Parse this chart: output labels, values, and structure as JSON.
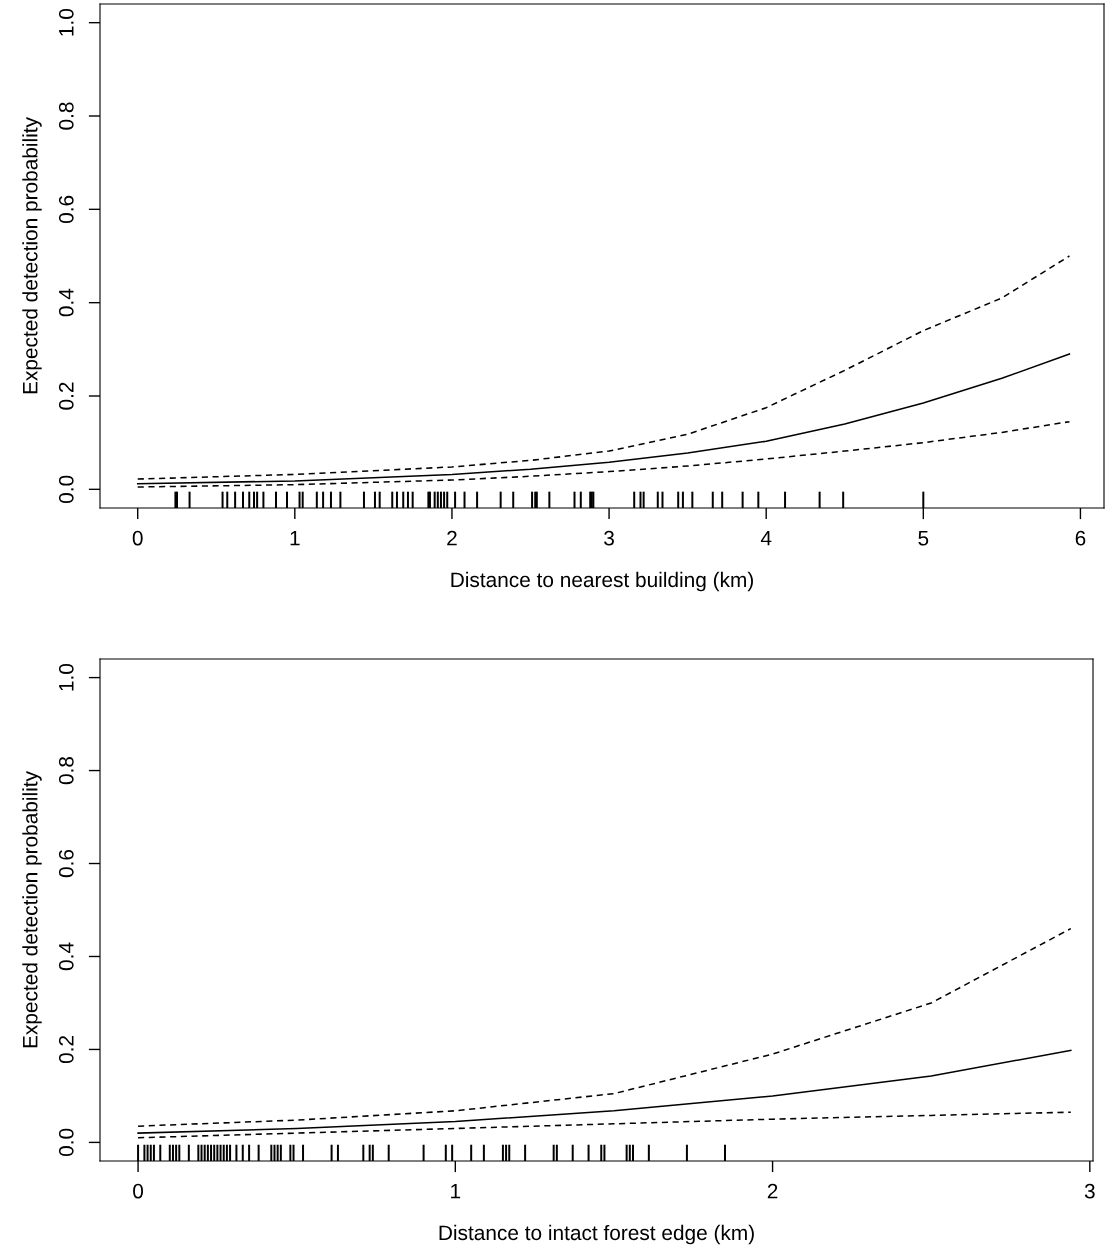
{
  "chart_data": [
    {
      "type": "line",
      "xlabel": "Distance to nearest building (km)",
      "ylabel": "Expected detection probability",
      "xlim": [
        -0.24,
        6.15
      ],
      "ylim": [
        -0.04,
        1.04
      ],
      "xticks": [
        0,
        1,
        2,
        3,
        4,
        5,
        6
      ],
      "yticks": [
        {
          "value": 0,
          "label": "0.0"
        },
        {
          "value": 0.2,
          "label": "0.2"
        },
        {
          "value": 0.4,
          "label": "0.4"
        },
        {
          "value": 0.6,
          "label": "0.6"
        },
        {
          "value": 0.8,
          "label": "0.8"
        },
        {
          "value": 1.0,
          "label": "1.0"
        }
      ],
      "series": [
        {
          "color": "#000000",
          "line_style": "solid",
          "x": [
            0,
            1,
            2,
            2.5,
            3,
            3.5,
            4,
            4.5,
            5,
            5.5,
            5.93
          ],
          "values": [
            0.012,
            0.018,
            0.032,
            0.043,
            0.058,
            0.078,
            0.103,
            0.14,
            0.185,
            0.238,
            0.29
          ]
        },
        {
          "color": "#000000",
          "line_style": "dashed",
          "x": [
            0,
            1,
            2,
            2.5,
            3,
            3.5,
            4,
            4.5,
            5,
            5.5,
            5.93
          ],
          "values": [
            0.022,
            0.032,
            0.048,
            0.062,
            0.082,
            0.118,
            0.175,
            0.255,
            0.34,
            0.41,
            0.5
          ]
        },
        {
          "color": "#000000",
          "line_style": "dashed",
          "x": [
            0,
            1,
            2,
            2.5,
            3,
            3.5,
            4,
            4.5,
            5,
            5.5,
            5.93
          ],
          "values": [
            0.005,
            0.01,
            0.02,
            0.028,
            0.038,
            0.05,
            0.065,
            0.082,
            0.1,
            0.122,
            0.145
          ]
        },
        {
          "type": "bar",
          "color": "#000000",
          "x": [
            0.24,
            0.25,
            0.33,
            0.54,
            0.57,
            0.62,
            0.67,
            0.71,
            0.74,
            0.76,
            0.8,
            0.88,
            0.95,
            1.03,
            1.05,
            1.14,
            1.18,
            1.23,
            1.29,
            1.44,
            1.51,
            1.54,
            1.62,
            1.65,
            1.69,
            1.72,
            1.75,
            1.85,
            1.86,
            1.89,
            1.91,
            1.93,
            1.95,
            1.97,
            2.02,
            2.08,
            2.16,
            2.31,
            2.39,
            2.51,
            2.53,
            2.54,
            2.62,
            2.78,
            2.82,
            2.88,
            2.89,
            2.9,
            3.16,
            3.2,
            3.22,
            3.31,
            3.34,
            3.44,
            3.47,
            3.53,
            3.66,
            3.72,
            3.85,
            3.95,
            4.12,
            4.34,
            4.49,
            5.0
          ],
          "values": [
            0.035,
            0.035,
            0.035,
            0.035,
            0.035,
            0.035,
            0.035,
            0.035,
            0.035,
            0.035,
            0.035,
            0.035,
            0.035,
            0.035,
            0.035,
            0.035,
            0.035,
            0.035,
            0.035,
            0.035,
            0.035,
            0.035,
            0.035,
            0.035,
            0.035,
            0.035,
            0.035,
            0.035,
            0.035,
            0.035,
            0.035,
            0.035,
            0.035,
            0.035,
            0.035,
            0.035,
            0.035,
            0.035,
            0.035,
            0.035,
            0.035,
            0.035,
            0.035,
            0.035,
            0.035,
            0.035,
            0.035,
            0.035,
            0.035,
            0.035,
            0.035,
            0.035,
            0.035,
            0.035,
            0.035,
            0.035,
            0.035,
            0.035,
            0.035,
            0.035,
            0.035,
            0.035,
            0.035,
            0.035
          ],
          "base": [
            -0.04,
            -0.04,
            -0.04,
            -0.04,
            -0.04,
            -0.04,
            -0.04,
            -0.04,
            -0.04,
            -0.04,
            -0.04,
            -0.04,
            -0.04,
            -0.04,
            -0.04,
            -0.04,
            -0.04,
            -0.04,
            -0.04,
            -0.04,
            -0.04,
            -0.04,
            -0.04,
            -0.04,
            -0.04,
            -0.04,
            -0.04,
            -0.04,
            -0.04,
            -0.04,
            -0.04,
            -0.04,
            -0.04,
            -0.04,
            -0.04,
            -0.04,
            -0.04,
            -0.04,
            -0.04,
            -0.04,
            -0.04,
            -0.04,
            -0.04,
            -0.04,
            -0.04,
            -0.04,
            -0.04,
            -0.04,
            -0.04,
            -0.04,
            -0.04,
            -0.04,
            -0.04,
            -0.04,
            -0.04,
            -0.04,
            -0.04,
            -0.04,
            -0.04,
            -0.04,
            -0.04,
            -0.04,
            -0.04,
            -0.04
          ]
        }
      ]
    },
    {
      "type": "line",
      "xlabel": "Distance to intact forest edge (km)",
      "ylabel": "Expected detection probability",
      "xlim": [
        -0.12,
        3.01
      ],
      "ylim": [
        -0.04,
        1.04
      ],
      "xticks": [
        0,
        1,
        2,
        3
      ],
      "yticks": [
        {
          "value": 0,
          "label": "0.0"
        },
        {
          "value": 0.2,
          "label": "0.2"
        },
        {
          "value": 0.4,
          "label": "0.4"
        },
        {
          "value": 0.6,
          "label": "0.6"
        },
        {
          "value": 0.8,
          "label": "0.8"
        },
        {
          "value": 1.0,
          "label": "1.0"
        }
      ],
      "series": [
        {
          "color": "#000000",
          "line_style": "solid",
          "x": [
            0,
            0.5,
            1,
            1.5,
            2,
            2.5,
            2.94
          ],
          "values": [
            0.02,
            0.03,
            0.045,
            0.068,
            0.1,
            0.143,
            0.198
          ]
        },
        {
          "color": "#000000",
          "line_style": "dashed",
          "x": [
            0,
            0.5,
            1,
            1.5,
            2,
            2.5,
            2.94
          ],
          "values": [
            0.035,
            0.048,
            0.068,
            0.105,
            0.19,
            0.3,
            0.46
          ]
        },
        {
          "color": "#000000",
          "line_style": "dashed",
          "x": [
            0,
            0.5,
            1,
            1.5,
            2,
            2.5,
            2.94
          ],
          "values": [
            0.01,
            0.02,
            0.03,
            0.04,
            0.05,
            0.058,
            0.065
          ]
        },
        {
          "type": "bar",
          "color": "#000000",
          "x": [
            0.0,
            0.02,
            0.03,
            0.04,
            0.05,
            0.07,
            0.1,
            0.11,
            0.12,
            0.13,
            0.16,
            0.19,
            0.2,
            0.21,
            0.22,
            0.23,
            0.24,
            0.25,
            0.26,
            0.27,
            0.28,
            0.29,
            0.31,
            0.33,
            0.35,
            0.38,
            0.42,
            0.43,
            0.44,
            0.45,
            0.48,
            0.49,
            0.52,
            0.61,
            0.63,
            0.71,
            0.73,
            0.74,
            0.79,
            0.9,
            0.97,
            0.99,
            1.05,
            1.09,
            1.15,
            1.16,
            1.17,
            1.22,
            1.31,
            1.32,
            1.37,
            1.42,
            1.46,
            1.47,
            1.54,
            1.55,
            1.56,
            1.61,
            1.73,
            1.85
          ],
          "values": [
            0.035,
            0.035,
            0.035,
            0.035,
            0.035,
            0.035,
            0.035,
            0.035,
            0.035,
            0.035,
            0.035,
            0.035,
            0.035,
            0.035,
            0.035,
            0.035,
            0.035,
            0.035,
            0.035,
            0.035,
            0.035,
            0.035,
            0.035,
            0.035,
            0.035,
            0.035,
            0.035,
            0.035,
            0.035,
            0.035,
            0.035,
            0.035,
            0.035,
            0.035,
            0.035,
            0.035,
            0.035,
            0.035,
            0.035,
            0.035,
            0.035,
            0.035,
            0.035,
            0.035,
            0.035,
            0.035,
            0.035,
            0.035,
            0.035,
            0.035,
            0.035,
            0.035,
            0.035,
            0.035,
            0.035,
            0.035,
            0.035,
            0.035,
            0.035,
            0.035
          ],
          "base": [
            -0.04,
            -0.04,
            -0.04,
            -0.04,
            -0.04,
            -0.04,
            -0.04,
            -0.04,
            -0.04,
            -0.04,
            -0.04,
            -0.04,
            -0.04,
            -0.04,
            -0.04,
            -0.04,
            -0.04,
            -0.04,
            -0.04,
            -0.04,
            -0.04,
            -0.04,
            -0.04,
            -0.04,
            -0.04,
            -0.04,
            -0.04,
            -0.04,
            -0.04,
            -0.04,
            -0.04,
            -0.04,
            -0.04,
            -0.04,
            -0.04,
            -0.04,
            -0.04,
            -0.04,
            -0.04,
            -0.04,
            -0.04,
            -0.04,
            -0.04,
            -0.04,
            -0.04,
            -0.04,
            -0.04,
            -0.04,
            -0.04,
            -0.04,
            -0.04,
            -0.04,
            -0.04,
            -0.04,
            -0.04,
            -0.04,
            -0.04,
            -0.04,
            -0.04,
            -0.04
          ]
        }
      ]
    }
  ]
}
